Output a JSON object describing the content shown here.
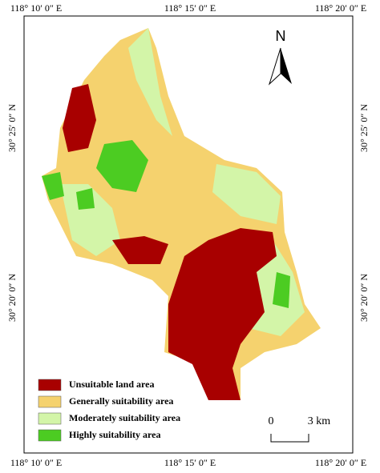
{
  "map": {
    "top_labels": [
      "118° 10′ 0″ E",
      "118° 15′ 0″ E",
      "118° 20′ 0″ E"
    ],
    "bottom_labels": [
      "118° 10′ 0″ E",
      "118° 15′ 0″ E",
      "118° 20′ 0″ E"
    ],
    "left_labels": [
      "30° 25′ 0″ N",
      "30° 20′ 0″ N"
    ],
    "right_labels": [
      "30° 25′ 0″ N",
      "30° 20′ 0″ N"
    ],
    "north": "N",
    "scale": {
      "start": "0",
      "end": "3 km"
    },
    "legend": [
      {
        "label": "Unsuitable land area",
        "color": "#a80000"
      },
      {
        "label": "Generally suitability area",
        "color": "#f5d26e"
      },
      {
        "label": "Moderately suitability area",
        "color": "#d3f5a8"
      },
      {
        "label": "Highly suitability area",
        "color": "#4ccc22"
      }
    ]
  }
}
